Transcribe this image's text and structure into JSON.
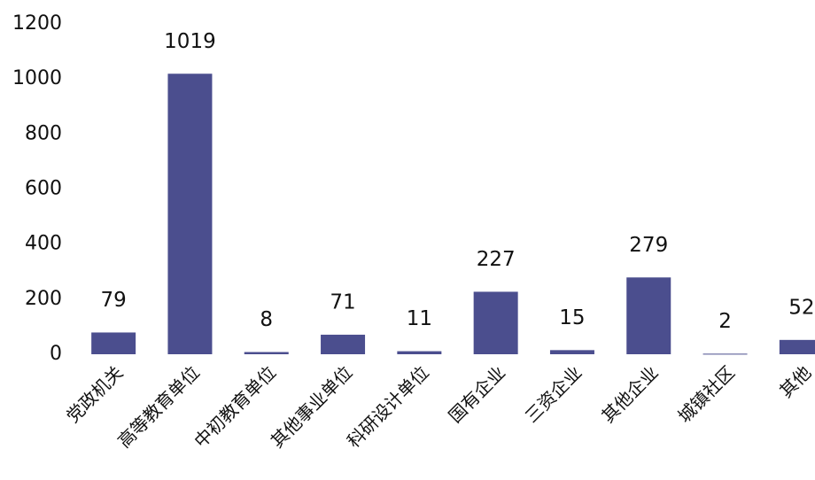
{
  "chart_data": {
    "type": "bar",
    "categories": [
      "党政机关",
      "高等教育单位",
      "中初教育单位",
      "其他事业单位",
      "科研设计单位",
      "国有企业",
      "三资企业",
      "其他企业",
      "城镇社区",
      "其他"
    ],
    "values": [
      79,
      1019,
      8,
      71,
      11,
      227,
      15,
      279,
      2,
      52
    ],
    "color": "#4b4e8e",
    "ylim": [
      0,
      1200
    ],
    "yticks": [
      0,
      200,
      400,
      600,
      800,
      1000,
      1200
    ],
    "grid": false
  }
}
